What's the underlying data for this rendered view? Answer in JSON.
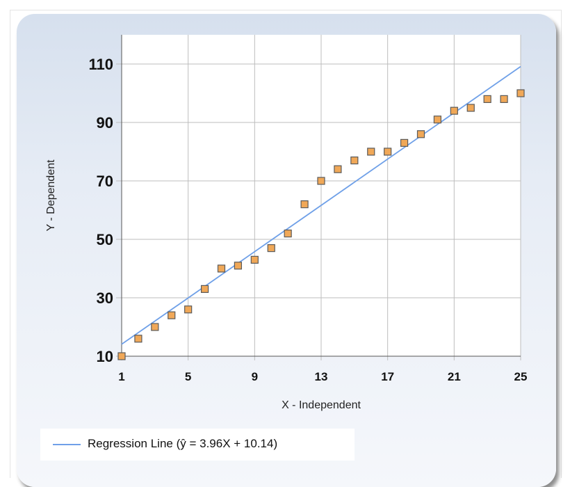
{
  "chart_data": {
    "type": "scatter",
    "xlabel": "X - Independent",
    "ylabel": "Y - Dependent",
    "xlim": [
      1,
      25
    ],
    "ylim": [
      10,
      120
    ],
    "xticks": [
      1,
      5,
      9,
      13,
      17,
      21,
      25
    ],
    "yticks": [
      10,
      30,
      50,
      70,
      90,
      110
    ],
    "grid": true,
    "legend_position": "bottom-left",
    "points_color": "#f0a858",
    "points_border": "#5a5a5a",
    "line_color": "#6fa0e8",
    "x": [
      1,
      2,
      3,
      4,
      5,
      6,
      7,
      8,
      9,
      10,
      11,
      12,
      13,
      14,
      15,
      16,
      17,
      18,
      19,
      20,
      21,
      22,
      23,
      24,
      25
    ],
    "y": [
      10,
      16,
      20,
      24,
      26,
      33,
      40,
      41,
      43,
      47,
      52,
      62,
      70,
      74,
      77,
      80,
      80,
      83,
      86,
      91,
      94,
      95,
      98,
      98,
      100
    ],
    "regression": {
      "slope": 3.96,
      "intercept": 10.14,
      "label": "Regression Line (ŷ = 3.96X + 10.14)"
    }
  }
}
